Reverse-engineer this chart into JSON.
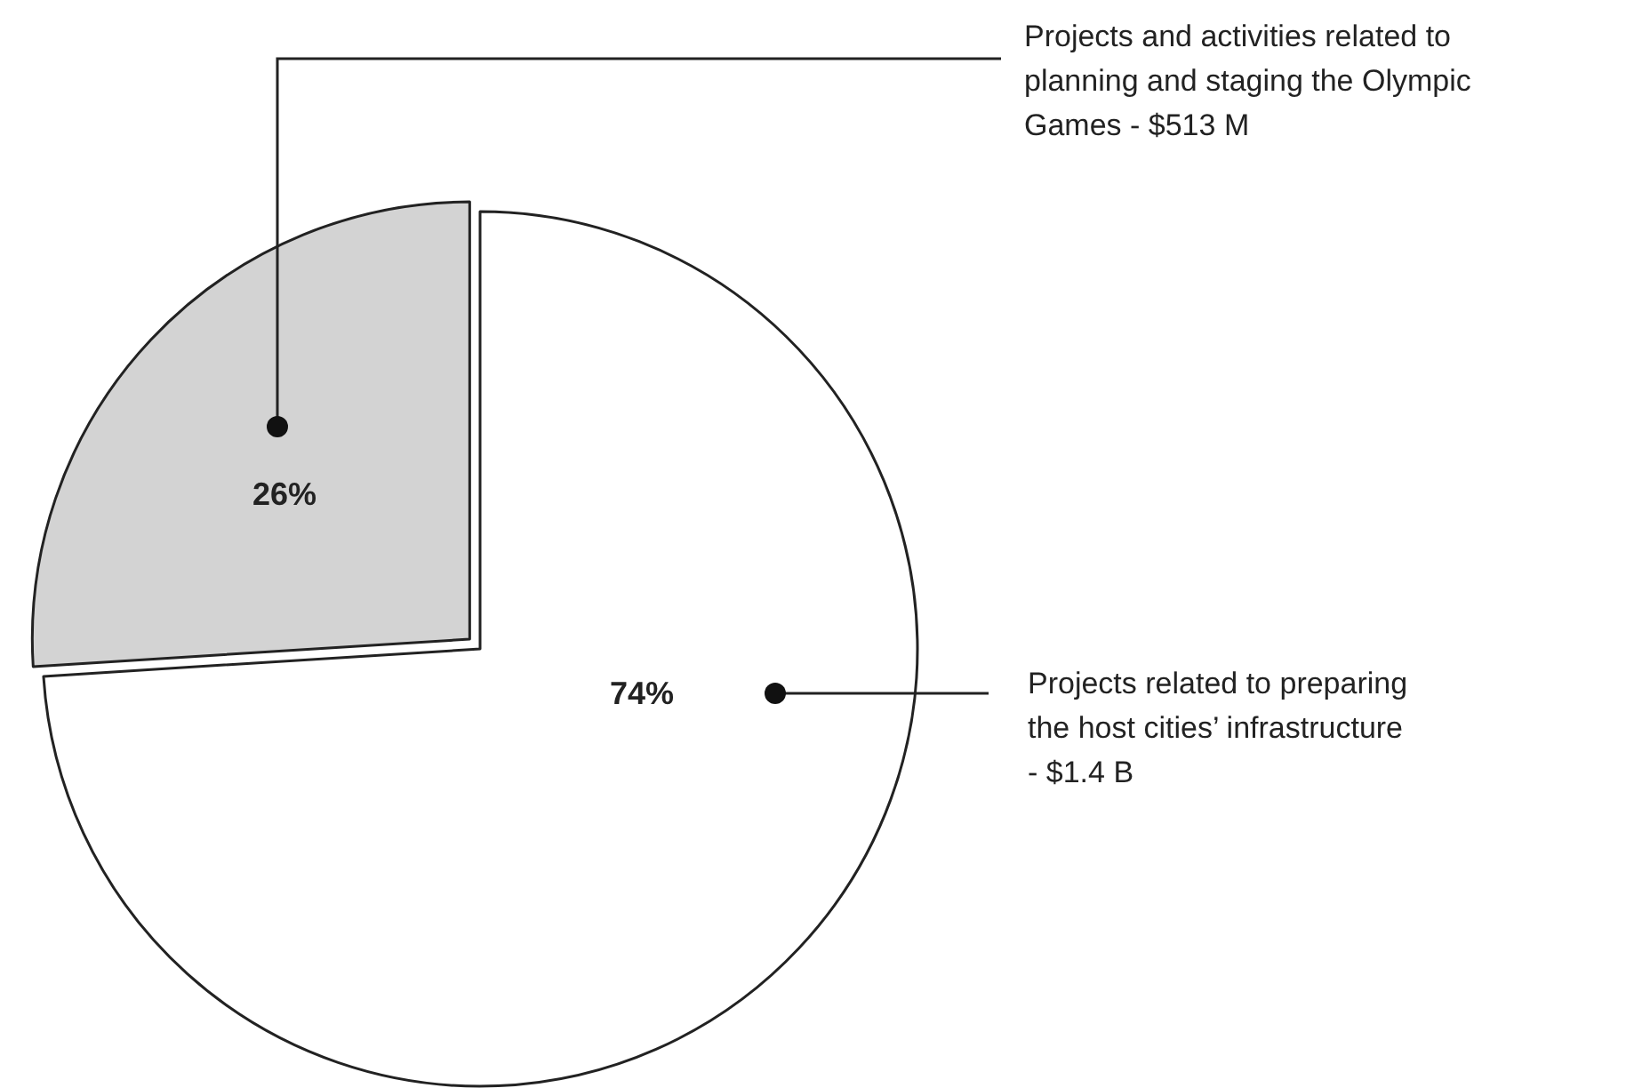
{
  "chart_data": {
    "type": "pie",
    "categories": [
      "Projects and activities related to planning and staging the Olympic Games - $513 M",
      "Projects related to preparing the host cities’ infrastructure - $1.4 B"
    ],
    "values": [
      26,
      74
    ],
    "colors": [
      "#d3d3d3",
      "#ffffff"
    ],
    "value_labels": [
      "26%",
      "74%"
    ]
  }
}
